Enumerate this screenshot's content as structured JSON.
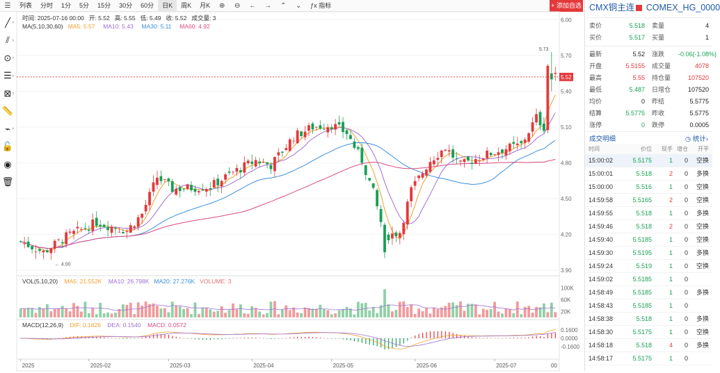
{
  "toolbar": {
    "items": [
      "列表",
      "分时",
      "1分",
      "5分",
      "15分",
      "30分",
      "60分",
      "日K",
      "周K",
      "月K"
    ],
    "active_index": 7,
    "indicator_label": "ƒx 指标",
    "add_watch_label": "+ 添加自选"
  },
  "chart_info": {
    "time": "时间: 2025-07-16 00:00",
    "open": "开: 5.52",
    "high": "高: 5.55",
    "low": "低: 5.49",
    "close": "收: 5.52",
    "volume": "成交量: 3",
    "ma_label": "MA(5,10,30,60)",
    "ma5": "MA5: 5.57",
    "ma10": "MA10: 5.43",
    "ma30": "MA30: 5.11",
    "ma60": "MA60: 4.92",
    "vol_label": "VOL(5,10,20)",
    "vma5": "MA5: 21.552K",
    "vma10": "MA10: 26.798K",
    "vma20": "MA20: 27.276K",
    "vvol": "VOLUME: 3",
    "macd_label": "MACD(12,26,9)",
    "dif": "DIF: 0.1826",
    "dea": "DEA: 0.1540",
    "macd": "MACD: 0.0572"
  },
  "chart_data": {
    "type": "candlestick",
    "price_axis": [
      "6.00",
      "5.70",
      "5.40",
      "5.10",
      "4.80",
      "4.50",
      "4.20",
      "3.90"
    ],
    "price_range": [
      3.87,
      6.02
    ],
    "current_price": "5.52",
    "high_label": "5.73",
    "low_label": "4.00",
    "vol_axis": [
      "100K",
      "60K",
      "20K"
    ],
    "macd_axis": [
      "0.1600",
      "0.0000",
      "-0.1600"
    ],
    "x_labels": [
      "2025",
      "2025-02",
      "2025-03",
      "2025-04",
      "2025-05",
      "2025-06",
      "2025-07",
      "00"
    ],
    "colors": {
      "up": "#e4393c",
      "down": "#18a055",
      "ma5": "#f0a030",
      "ma10": "#a070d0",
      "ma30": "#3a8ee0",
      "ma60": "#d84a80"
    }
  },
  "panel": {
    "title": "CMX铜主连",
    "code": "COMEX_HG_0000",
    "bid_ask": [
      {
        "l1": "卖价",
        "v1": "5.518",
        "l2": "卖量",
        "v2": "4"
      },
      {
        "l1": "买价",
        "v1": "5.517",
        "l2": "买量",
        "v2": "1"
      }
    ],
    "stats": [
      {
        "l1": "最新",
        "v1": "5.52",
        "l2": "涨跌",
        "v2": "-0.06(-1.08%)"
      },
      {
        "l1": "开盘",
        "v1": "5.5155",
        "l2": "成交量",
        "v2": "4078"
      },
      {
        "l1": "最高",
        "v1": "5.55",
        "l2": "持仓量",
        "v2": "107520"
      },
      {
        "l1": "最低",
        "v1": "5.487",
        "l2": "日增仓",
        "v2": "107520"
      },
      {
        "l1": "均价",
        "v1": "0",
        "l2": "昨结",
        "v2": "5.5775"
      },
      {
        "l1": "结算",
        "v1": "5.5775",
        "l2": "昨收",
        "v2": "5.5775"
      },
      {
        "l1": "涨停",
        "v1": "0",
        "l2": "跌停",
        "v2": "0.0005"
      }
    ],
    "trades_title": "成交明细",
    "trades_stats": "统计",
    "trade_cols": [
      "时间",
      "价位",
      "现手",
      "增仓",
      "开平"
    ],
    "trades": [
      {
        "time": "15:00:02",
        "price": "5.5175",
        "vol": "1",
        "oi": "0",
        "kind": "空换"
      },
      {
        "time": "15:00:01",
        "price": "5.518",
        "vol": "2",
        "oi": "0",
        "kind": "多换"
      },
      {
        "time": "15:00:00",
        "price": "5.516",
        "vol": "1",
        "oi": "0",
        "kind": "空换"
      },
      {
        "time": "14:59:58",
        "price": "5.5165",
        "vol": "2",
        "oi": "0",
        "kind": "空换"
      },
      {
        "time": "14:59:55",
        "price": "5.518",
        "vol": "1",
        "oi": "0",
        "kind": "多换"
      },
      {
        "time": "14:59:46",
        "price": "5.518",
        "vol": "2",
        "oi": "0",
        "kind": "空换"
      },
      {
        "time": "14:59:40",
        "price": "5.5185",
        "vol": "1",
        "oi": "0",
        "kind": "空换"
      },
      {
        "time": "14:59:30",
        "price": "5.5195",
        "vol": "1",
        "oi": "0",
        "kind": "多换"
      },
      {
        "time": "14:59:24",
        "price": "5.519",
        "vol": "1",
        "oi": "0",
        "kind": "空换"
      },
      {
        "time": "14:59:02",
        "price": "5.5185",
        "vol": "1",
        "oi": "0",
        "kind": ""
      },
      {
        "time": "14:58:49",
        "price": "5.5185",
        "vol": "1",
        "oi": "0",
        "kind": "多换"
      },
      {
        "time": "14:58:43",
        "price": "5.5185",
        "vol": "1",
        "oi": "0",
        "kind": ""
      },
      {
        "time": "14:58:38",
        "price": "5.518",
        "vol": "1",
        "oi": "0",
        "kind": "多换"
      },
      {
        "time": "14:58:30",
        "price": "5.5175",
        "vol": "1",
        "oi": "0",
        "kind": "空换"
      },
      {
        "time": "14:58:18",
        "price": "5.518",
        "vol": "4",
        "oi": "0",
        "kind": "多换"
      },
      {
        "time": "14:58:17",
        "price": "5.5175",
        "vol": "1",
        "oi": "0",
        "kind": ""
      }
    ]
  }
}
